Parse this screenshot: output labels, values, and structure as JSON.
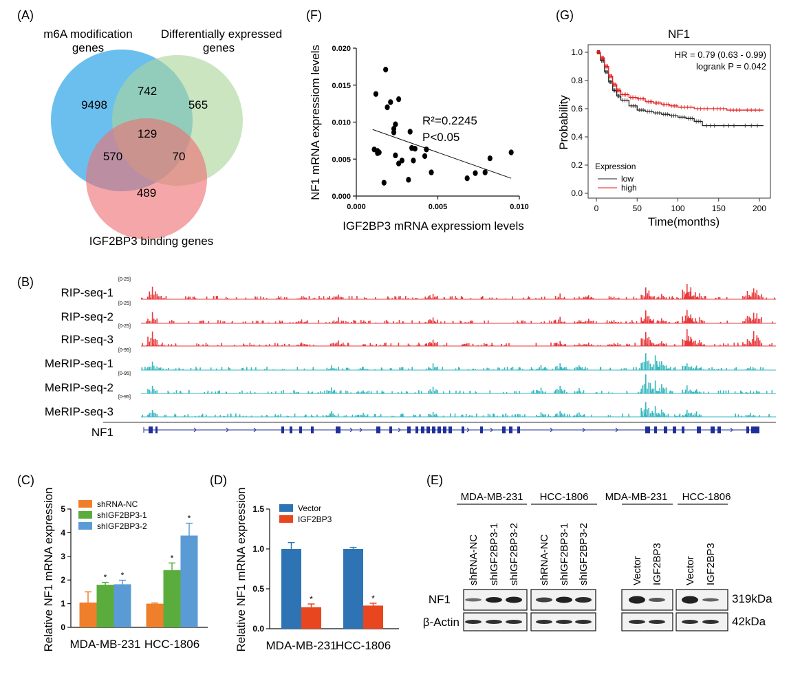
{
  "panel_labels": [
    "(A)",
    "(B)",
    "(C)",
    "(D)",
    "(E)",
    "(F)",
    "(G)"
  ],
  "venn": {
    "set_a": [
      "m6A modification",
      "genes"
    ],
    "set_b": [
      "Differentially expressed",
      "genes"
    ],
    "set_c": "IGF2BP3 binding genes",
    "counts": {
      "a_only": "9498",
      "ab": "742",
      "b_only": "565",
      "abc": "129",
      "ac": "570",
      "bc": "70",
      "c_only": "489"
    },
    "colors": {
      "a": "#5bb8ec",
      "b": "#a9d59a",
      "c": "#ee6f73"
    }
  },
  "tracks": {
    "rows": [
      {
        "label": "RIP-seq-1",
        "range": "[0-25]",
        "color": "#e8393d"
      },
      {
        "label": "RIP-seq-2",
        "range": "[0-25]",
        "color": "#e8393d"
      },
      {
        "label": "RIP-seq-3",
        "range": "[0-25]",
        "color": "#e8393d"
      },
      {
        "label": "MeRIP-seq-1",
        "range": "[0-95]",
        "color": "#36b7be"
      },
      {
        "label": "MeRIP-seq-2",
        "range": "[0-95]",
        "color": "#36b7be"
      },
      {
        "label": "MeRIP-seq-3",
        "range": "[0-95]",
        "color": "#36b7be"
      }
    ],
    "gene": "NF1",
    "gene_color": "#1f2f9a"
  },
  "chart_data": [
    {
      "panel": "(C)",
      "type": "bar",
      "categories": [
        "MDA-MB-231",
        "HCC-1806"
      ],
      "series": [
        {
          "name": "shRNA-NC",
          "values": [
            1.05,
            1.0
          ],
          "errors": [
            0.45,
            0.03
          ],
          "color": "#f07f2c",
          "sig": [
            "",
            ""
          ]
        },
        {
          "name": "shIGF2BP3-1",
          "values": [
            1.8,
            2.42
          ],
          "errors": [
            0.1,
            0.3
          ],
          "color": "#5aad3d",
          "sig": [
            "*",
            "*"
          ]
        },
        {
          "name": "shIGF2BP3-2",
          "values": [
            1.82,
            3.88
          ],
          "errors": [
            0.17,
            0.52
          ],
          "color": "#5b9bd5",
          "sig": [
            "*",
            "*"
          ]
        }
      ],
      "ylabel": "Relative NF1 mRNA expression",
      "ylim": [
        0,
        5
      ],
      "yticks": [
        "0",
        "1",
        "2",
        "3",
        "4",
        "5"
      ]
    },
    {
      "panel": "(D)",
      "type": "bar",
      "categories": [
        "MDA-MB-231",
        "HCC-1806"
      ],
      "series": [
        {
          "name": "Vector",
          "values": [
            1.0,
            1.0
          ],
          "errors": [
            0.08,
            0.02
          ],
          "color": "#2e74b5",
          "sig": [
            "",
            ""
          ]
        },
        {
          "name": "IGF2BP3",
          "values": [
            0.27,
            0.29
          ],
          "errors": [
            0.04,
            0.03
          ],
          "color": "#e8461e",
          "sig": [
            "*",
            "*"
          ]
        }
      ],
      "ylabel": "Relative NF1 mRNA expression",
      "ylim": [
        0,
        1.5
      ],
      "yticks": [
        "0.0",
        "0.5",
        "1.0",
        "1.5"
      ]
    },
    {
      "panel": "(F)",
      "type": "scatter",
      "x": [
        0.0011,
        0.0012,
        0.0013,
        0.0013,
        0.0014,
        0.0017,
        0.0018,
        0.0019,
        0.0021,
        0.0023,
        0.0023,
        0.0024,
        0.0024,
        0.0026,
        0.0026,
        0.0028,
        0.0032,
        0.0033,
        0.0034,
        0.0035,
        0.0036,
        0.0042,
        0.0043,
        0.0046,
        0.0068,
        0.0073,
        0.0079,
        0.0082,
        0.0095
      ],
      "y": [
        0.0063,
        0.0138,
        0.0061,
        0.0058,
        0.0059,
        0.0018,
        0.0171,
        0.012,
        0.0127,
        0.0091,
        0.0086,
        0.0055,
        0.0097,
        0.0044,
        0.0131,
        0.0048,
        0.0022,
        0.0087,
        0.0065,
        0.0048,
        0.0064,
        0.0054,
        0.0063,
        0.0032,
        0.0024,
        0.0031,
        0.0032,
        0.0051,
        0.0059
      ],
      "fit": {
        "x": [
          0.001,
          0.0095
        ],
        "y": [
          0.009,
          0.0024
        ]
      },
      "annotation": [
        "R²=0.2245",
        "P<0.05"
      ],
      "xlabel": "IGF2BP3 mRNA expressiom levels",
      "ylabel": "NF1 mRNA expressiom levels",
      "xlim": [
        0,
        0.01
      ],
      "ylim": [
        0,
        0.02
      ],
      "xticks": [
        "0.000",
        "0.005",
        "0.010"
      ],
      "yticks": [
        "0.000",
        "0.005",
        "0.010",
        "0.015",
        "0.020"
      ]
    },
    {
      "panel": "(G)",
      "type": "line",
      "title": "NF1",
      "xlabel": "Time(months)",
      "ylabel": "Probability",
      "xlim": [
        0,
        210
      ],
      "ylim": [
        0,
        1.05
      ],
      "xticks": [
        "0",
        "50",
        "100",
        "150",
        "200"
      ],
      "yticks": [
        "0.0",
        "0.2",
        "0.4",
        "0.6",
        "0.8",
        "1.0"
      ],
      "legend_title": "Expression",
      "annotation": [
        "HR = 0.79 (0.63 - 0.99)",
        "logrank P = 0.042"
      ],
      "series": [
        {
          "name": "low",
          "color": "#222222",
          "x": [
            0,
            5,
            10,
            15,
            20,
            25,
            30,
            40,
            50,
            60,
            70,
            80,
            90,
            100,
            110,
            120,
            130,
            150,
            175,
            205
          ],
          "y": [
            1.0,
            0.94,
            0.86,
            0.79,
            0.73,
            0.69,
            0.66,
            0.62,
            0.59,
            0.58,
            0.57,
            0.56,
            0.55,
            0.54,
            0.53,
            0.51,
            0.48,
            0.48,
            0.48,
            0.48
          ]
        },
        {
          "name": "high",
          "color": "#e41a1c",
          "x": [
            0,
            5,
            10,
            15,
            20,
            25,
            30,
            40,
            50,
            60,
            70,
            80,
            90,
            100,
            120,
            140,
            160,
            180,
            205
          ],
          "y": [
            1.0,
            0.96,
            0.9,
            0.83,
            0.77,
            0.73,
            0.7,
            0.68,
            0.67,
            0.65,
            0.64,
            0.63,
            0.62,
            0.61,
            0.6,
            0.6,
            0.59,
            0.59,
            0.59
          ]
        }
      ]
    }
  ],
  "blot": {
    "groups": [
      "MDA-MB-231",
      "HCC-1806",
      "MDA-MB-231",
      "HCC-1806"
    ],
    "lanes_left": [
      "shRNA-NC",
      "shIGF2BP3-1",
      "shIGF2BP3-2"
    ],
    "lanes_right": [
      "Vector",
      "IGF2BP3"
    ],
    "rows": [
      "NF1",
      "β-Actin"
    ],
    "sizes": [
      "319kDa",
      "42kDa"
    ]
  }
}
